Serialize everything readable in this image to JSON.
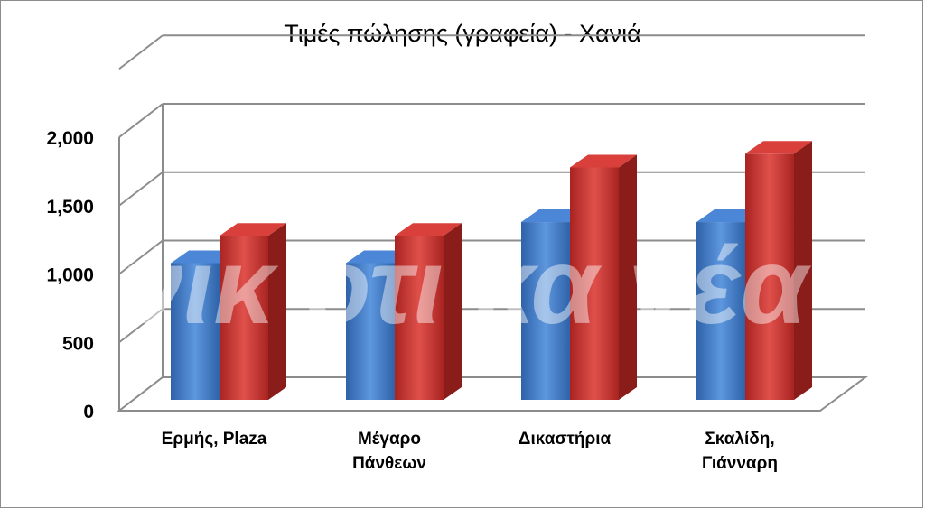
{
  "chart_data": {
    "type": "bar",
    "title": "Τιμές πώλησης (γραφεία) - Χανιά",
    "categories": [
      [
        "Ερμής, Plaza"
      ],
      [
        "Μέγαρο",
        "Πάνθεων"
      ],
      [
        "Δικαστήρια"
      ],
      [
        "Σκαλίδη,",
        "Γιάνναρη"
      ]
    ],
    "series": [
      {
        "values": [
          1000,
          1000,
          1300,
          1300
        ],
        "color": "#3a77c9"
      },
      {
        "values": [
          1200,
          1200,
          1700,
          1800
        ],
        "color": "#c9302c"
      }
    ],
    "ylim": [
      0,
      2000
    ],
    "yticks": [
      "0",
      "500",
      "1,000",
      "1,500",
      "2,000"
    ],
    "grid": true,
    "legend": "none",
    "watermark": "νικ οτι κα νέα"
  }
}
